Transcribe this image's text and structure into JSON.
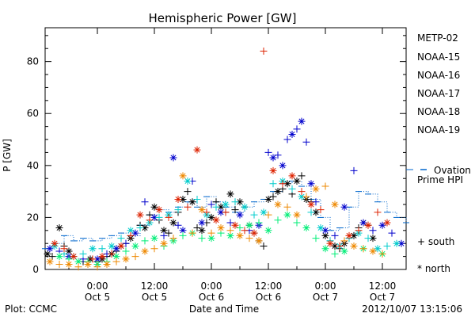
{
  "chart_data": {
    "type": "scatter",
    "title": "Hemispheric Power [GW]",
    "xlabel": "Date and Time",
    "ylabel": "P [GW]",
    "ylim": [
      0,
      93
    ],
    "xlim_hours": [
      -8,
      46
    ],
    "yticks": [
      0,
      20,
      40,
      60,
      80
    ],
    "xticks": [
      {
        "hours": 0,
        "time": "0:00",
        "date": "Oct 5"
      },
      {
        "hours": 12,
        "time": "12:00",
        "date": "Oct 5"
      },
      {
        "hours": 24,
        "time": "0:00",
        "date": "Oct 6"
      },
      {
        "hours": 36,
        "time": "12:00",
        "date": "Oct 6"
      },
      {
        "hours": 48,
        "time": "0:00",
        "date": "Oct 7"
      },
      {
        "hours": 60,
        "time": "12:00",
        "date": "Oct 7"
      }
    ],
    "legend_position": "right",
    "marker_legend": {
      "south": "+ south",
      "north": "* north"
    },
    "footer_left": "Plot: CCMC",
    "footer_right": "2012/10/07 13:15:06",
    "series": [
      {
        "name": "METP-02",
        "color": "#000000",
        "points": [
          [
            -10.5,
            6
          ],
          [
            -9.5,
            5
          ],
          [
            -8,
            16
          ],
          [
            -7,
            9
          ],
          [
            -6,
            7
          ],
          [
            -3,
            3
          ],
          [
            -1.5,
            4
          ],
          [
            0,
            3
          ],
          [
            1,
            4
          ],
          [
            2,
            5
          ],
          [
            3,
            6
          ],
          [
            4,
            7
          ],
          [
            5,
            9
          ],
          [
            6,
            10
          ],
          [
            7,
            12
          ],
          [
            9,
            17
          ],
          [
            10,
            16
          ],
          [
            11,
            21
          ],
          [
            12,
            24
          ],
          [
            13,
            19
          ],
          [
            14,
            15
          ],
          [
            15,
            14
          ],
          [
            16,
            18
          ],
          [
            17,
            22
          ],
          [
            18,
            27
          ],
          [
            19,
            30
          ],
          [
            20,
            26
          ],
          [
            21,
            16
          ],
          [
            22,
            15
          ],
          [
            23,
            18
          ],
          [
            24,
            20
          ],
          [
            25,
            26
          ],
          [
            26,
            24
          ],
          [
            27,
            22
          ],
          [
            28,
            29
          ],
          [
            29,
            23
          ],
          [
            30,
            26
          ],
          [
            31,
            24
          ],
          [
            32,
            17
          ],
          [
            33,
            14
          ],
          [
            34,
            11
          ],
          [
            35,
            9
          ],
          [
            36,
            27
          ],
          [
            37,
            28
          ],
          [
            38,
            30
          ],
          [
            39,
            31
          ],
          [
            40,
            33
          ],
          [
            41,
            29
          ],
          [
            42,
            34
          ],
          [
            43,
            36
          ],
          [
            44,
            27
          ],
          [
            45,
            26
          ],
          [
            46,
            22
          ],
          [
            47,
            16
          ],
          [
            48,
            13
          ],
          [
            49,
            11
          ],
          [
            50,
            9
          ],
          [
            51,
            8
          ],
          [
            52,
            10
          ],
          [
            53,
            12
          ],
          [
            54,
            13
          ],
          [
            55,
            16
          ],
          [
            56,
            18
          ],
          [
            57,
            17
          ],
          [
            58,
            12
          ]
        ]
      },
      {
        "name": "NOAA-15",
        "color": "#0000cc",
        "points": [
          [
            -10,
            8
          ],
          [
            -8,
            7
          ],
          [
            -6,
            5
          ],
          [
            -3,
            4
          ],
          [
            0,
            4
          ],
          [
            2,
            6
          ],
          [
            4,
            8
          ],
          [
            6,
            10
          ],
          [
            8,
            14
          ],
          [
            10,
            26
          ],
          [
            12,
            20
          ],
          [
            14,
            13
          ],
          [
            16,
            43
          ],
          [
            17,
            17
          ],
          [
            18,
            15
          ],
          [
            20,
            34
          ],
          [
            22,
            18
          ],
          [
            24,
            25
          ],
          [
            26,
            22
          ],
          [
            28,
            18
          ],
          [
            30,
            21
          ],
          [
            32,
            15
          ],
          [
            34,
            17
          ],
          [
            36,
            45
          ],
          [
            37,
            43
          ],
          [
            38,
            44
          ],
          [
            39,
            40
          ],
          [
            40,
            50
          ],
          [
            41,
            52
          ],
          [
            42,
            54
          ],
          [
            43,
            57
          ],
          [
            44,
            49
          ],
          [
            45,
            33
          ],
          [
            46,
            26
          ],
          [
            48,
            15
          ],
          [
            50,
            13
          ],
          [
            52,
            24
          ],
          [
            54,
            38
          ],
          [
            56,
            18
          ],
          [
            58,
            15
          ],
          [
            60,
            17
          ],
          [
            62,
            14
          ],
          [
            64,
            10
          ]
        ]
      },
      {
        "name": "NOAA-16",
        "color": "#00cccc",
        "points": [
          [
            -9,
            9
          ],
          [
            -7,
            6
          ],
          [
            -5,
            5
          ],
          [
            -3,
            6
          ],
          [
            -1,
            8
          ],
          [
            1,
            8
          ],
          [
            3,
            9
          ],
          [
            5,
            12
          ],
          [
            7,
            15
          ],
          [
            9,
            16
          ],
          [
            11,
            18
          ],
          [
            13,
            20
          ],
          [
            15,
            21
          ],
          [
            17,
            23
          ],
          [
            19,
            34
          ],
          [
            21,
            27
          ],
          [
            23,
            21
          ],
          [
            25,
            24
          ],
          [
            27,
            25
          ],
          [
            29,
            26
          ],
          [
            31,
            24
          ],
          [
            33,
            21
          ],
          [
            35,
            22
          ],
          [
            37,
            33
          ],
          [
            39,
            34
          ],
          [
            41,
            31
          ],
          [
            43,
            28
          ],
          [
            45,
            22
          ],
          [
            47,
            16
          ],
          [
            49,
            11
          ],
          [
            51,
            9
          ],
          [
            53,
            12
          ],
          [
            55,
            14
          ],
          [
            57,
            12
          ],
          [
            59,
            8
          ],
          [
            61,
            9
          ],
          [
            63,
            10
          ]
        ]
      },
      {
        "name": "NOAA-17",
        "color": "#00ee77",
        "points": [
          [
            -8,
            5
          ],
          [
            -6,
            4
          ],
          [
            -4,
            3
          ],
          [
            -2,
            3
          ],
          [
            0,
            2
          ],
          [
            2,
            3
          ],
          [
            4,
            5
          ],
          [
            6,
            7
          ],
          [
            8,
            9
          ],
          [
            10,
            11
          ],
          [
            12,
            12
          ],
          [
            14,
            9
          ],
          [
            16,
            11
          ],
          [
            18,
            13
          ],
          [
            20,
            14
          ],
          [
            22,
            12
          ],
          [
            24,
            12
          ],
          [
            26,
            14
          ],
          [
            28,
            13
          ],
          [
            30,
            16
          ],
          [
            32,
            17
          ],
          [
            34,
            18
          ],
          [
            36,
            15
          ],
          [
            38,
            19
          ],
          [
            40,
            21
          ],
          [
            42,
            18
          ],
          [
            44,
            16
          ],
          [
            46,
            12
          ],
          [
            48,
            8
          ],
          [
            50,
            6
          ],
          [
            52,
            7
          ],
          [
            54,
            9
          ],
          [
            56,
            8
          ],
          [
            58,
            7
          ],
          [
            60,
            6
          ]
        ]
      },
      {
        "name": "NOAA-18",
        "color": "#ee8800",
        "points": [
          [
            -10,
            3
          ],
          [
            -8,
            2
          ],
          [
            -6,
            2
          ],
          [
            -4,
            1
          ],
          [
            -2,
            2
          ],
          [
            0,
            1
          ],
          [
            2,
            2
          ],
          [
            4,
            3
          ],
          [
            6,
            4
          ],
          [
            8,
            5
          ],
          [
            10,
            7
          ],
          [
            12,
            8
          ],
          [
            14,
            10
          ],
          [
            16,
            12
          ],
          [
            18,
            36
          ],
          [
            20,
            14
          ],
          [
            22,
            23
          ],
          [
            24,
            14
          ],
          [
            26,
            16
          ],
          [
            28,
            15
          ],
          [
            30,
            13
          ],
          [
            32,
            12
          ],
          [
            34,
            11
          ],
          [
            36,
            21
          ],
          [
            38,
            25
          ],
          [
            40,
            24
          ],
          [
            42,
            21
          ],
          [
            44,
            28
          ],
          [
            46,
            31
          ],
          [
            48,
            32
          ],
          [
            50,
            25
          ],
          [
            52,
            11
          ],
          [
            54,
            9
          ],
          [
            56,
            8
          ],
          [
            58,
            7
          ],
          [
            60,
            6
          ]
        ]
      },
      {
        "name": "NOAA-19",
        "color": "#dd2200",
        "points": [
          [
            -9,
            10
          ],
          [
            -7,
            8
          ],
          [
            -5,
            5
          ],
          [
            -1,
            4
          ],
          [
            1,
            5
          ],
          [
            3,
            6
          ],
          [
            5,
            9
          ],
          [
            7,
            13
          ],
          [
            9,
            21
          ],
          [
            11,
            19
          ],
          [
            13,
            23
          ],
          [
            15,
            20
          ],
          [
            17,
            27
          ],
          [
            19,
            24
          ],
          [
            21,
            46
          ],
          [
            23,
            22
          ],
          [
            25,
            19
          ],
          [
            27,
            22
          ],
          [
            29,
            17
          ],
          [
            31,
            15
          ],
          [
            33,
            14
          ],
          [
            35,
            84
          ],
          [
            37,
            38
          ],
          [
            39,
            33
          ],
          [
            41,
            36
          ],
          [
            43,
            30
          ],
          [
            45,
            25
          ],
          [
            47,
            23
          ],
          [
            49,
            10
          ],
          [
            51,
            9
          ],
          [
            53,
            13
          ],
          [
            55,
            15
          ],
          [
            57,
            17
          ],
          [
            59,
            22
          ],
          [
            61,
            18
          ]
        ]
      },
      {
        "name": "Ovation Prime HPI",
        "color": "#0066cc",
        "points": [
          [
            -11,
            8
          ],
          [
            -9,
            10
          ],
          [
            -7,
            13
          ],
          [
            -5,
            11
          ],
          [
            -3,
            12
          ],
          [
            -1,
            11
          ],
          [
            1,
            12
          ],
          [
            3,
            13
          ],
          [
            5,
            14
          ],
          [
            7,
            13
          ],
          [
            9,
            17
          ],
          [
            11,
            21
          ],
          [
            13,
            23
          ],
          [
            15,
            22
          ],
          [
            17,
            24
          ],
          [
            19,
            26
          ],
          [
            21,
            24
          ],
          [
            23,
            28
          ],
          [
            25,
            26
          ],
          [
            27,
            24
          ],
          [
            29,
            22
          ],
          [
            31,
            24
          ],
          [
            33,
            26
          ],
          [
            35,
            27
          ],
          [
            37,
            30
          ],
          [
            39,
            33
          ],
          [
            41,
            34
          ],
          [
            43,
            32
          ],
          [
            45,
            27
          ],
          [
            47,
            20
          ],
          [
            49,
            15
          ],
          [
            51,
            16
          ],
          [
            53,
            24
          ],
          [
            55,
            30
          ],
          [
            57,
            29
          ],
          [
            59,
            26
          ],
          [
            61,
            22
          ],
          [
            63,
            20
          ],
          [
            65,
            18
          ]
        ]
      }
    ]
  }
}
